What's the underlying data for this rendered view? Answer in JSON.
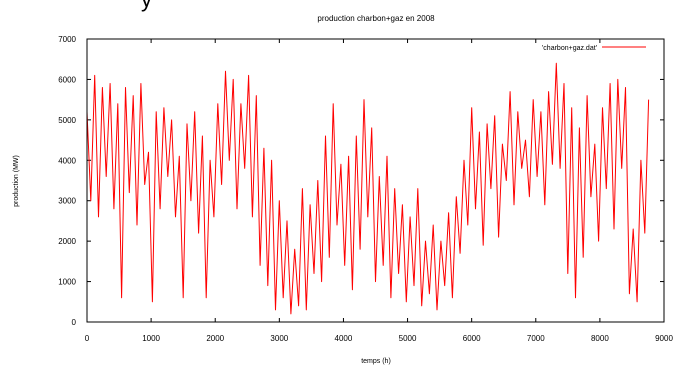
{
  "page": {
    "cropped_heading": "y"
  },
  "chart_data": {
    "type": "line",
    "title": "production charbon+gaz en 2008",
    "xlabel": "temps (h)",
    "ylabel": "production (MW)",
    "xlim": [
      0,
      9000
    ],
    "ylim": [
      0,
      7000
    ],
    "xticks": [
      0,
      1000,
      2000,
      3000,
      4000,
      5000,
      6000,
      7000,
      8000,
      9000
    ],
    "yticks": [
      0,
      1000,
      2000,
      3000,
      4000,
      5000,
      6000,
      7000
    ],
    "grid": false,
    "legend_position": "top-right",
    "series": [
      {
        "name": "'charbon+gaz.dat'",
        "color": "#ff0000",
        "x": [
          0,
          60,
          120,
          180,
          240,
          300,
          360,
          420,
          480,
          540,
          600,
          660,
          720,
          780,
          840,
          900,
          960,
          1020,
          1080,
          1140,
          1200,
          1260,
          1320,
          1380,
          1440,
          1500,
          1560,
          1620,
          1680,
          1740,
          1800,
          1860,
          1920,
          1980,
          2040,
          2100,
          2160,
          2220,
          2280,
          2340,
          2400,
          2460,
          2520,
          2580,
          2640,
          2700,
          2760,
          2820,
          2880,
          2940,
          3000,
          3060,
          3120,
          3180,
          3240,
          3300,
          3360,
          3420,
          3480,
          3540,
          3600,
          3660,
          3720,
          3780,
          3840,
          3900,
          3960,
          4020,
          4080,
          4140,
          4200,
          4260,
          4320,
          4380,
          4440,
          4500,
          4560,
          4620,
          4680,
          4740,
          4800,
          4860,
          4920,
          4980,
          5040,
          5100,
          5160,
          5220,
          5280,
          5340,
          5400,
          5460,
          5520,
          5580,
          5640,
          5700,
          5760,
          5820,
          5880,
          5940,
          6000,
          6060,
          6120,
          6180,
          6240,
          6300,
          6360,
          6420,
          6480,
          6540,
          6600,
          6660,
          6720,
          6780,
          6840,
          6900,
          6960,
          7020,
          7080,
          7140,
          7200,
          7260,
          7320,
          7380,
          7440,
          7500,
          7560,
          7620,
          7680,
          7740,
          7800,
          7860,
          7920,
          7980,
          8040,
          8100,
          8160,
          8220,
          8280,
          8340,
          8400,
          8460,
          8520,
          8580,
          8640,
          8700,
          8760
        ],
        "y": [
          5200,
          3000,
          6100,
          2600,
          5800,
          3600,
          5900,
          2800,
          5400,
          600,
          5800,
          3200,
          5600,
          2400,
          5900,
          3400,
          4200,
          500,
          5200,
          2800,
          5300,
          3600,
          5000,
          2600,
          4100,
          600,
          4900,
          3000,
          5200,
          2200,
          4600,
          600,
          4000,
          2600,
          5400,
          3400,
          6200,
          4000,
          6000,
          2800,
          5400,
          3800,
          6100,
          2600,
          5600,
          1400,
          4300,
          900,
          4000,
          300,
          3000,
          600,
          2500,
          200,
          1800,
          400,
          3300,
          300,
          2900,
          1200,
          3500,
          1000,
          4600,
          1600,
          5400,
          2400,
          3900,
          1400,
          4100,
          800,
          4600,
          1800,
          5500,
          2600,
          4800,
          1000,
          3600,
          1400,
          4100,
          600,
          3300,
          1200,
          2900,
          500,
          2600,
          900,
          3300,
          400,
          2000,
          700,
          2400,
          300,
          2000,
          900,
          2700,
          600,
          3100,
          1700,
          4000,
          2400,
          5300,
          2800,
          4700,
          1900,
          4900,
          3300,
          5100,
          2100,
          4400,
          3500,
          5700,
          2900,
          5200,
          3800,
          4500,
          3100,
          5500,
          3600,
          5200,
          2900,
          5700,
          3900,
          6400,
          3800,
          5900,
          1200,
          5300,
          600,
          4800,
          1600,
          5600,
          3100,
          4400,
          2000,
          5300,
          3300,
          5900,
          2300,
          6000,
          3800,
          5800,
          700,
          2300,
          500,
          4000,
          2200,
          5500
        ]
      }
    ]
  }
}
